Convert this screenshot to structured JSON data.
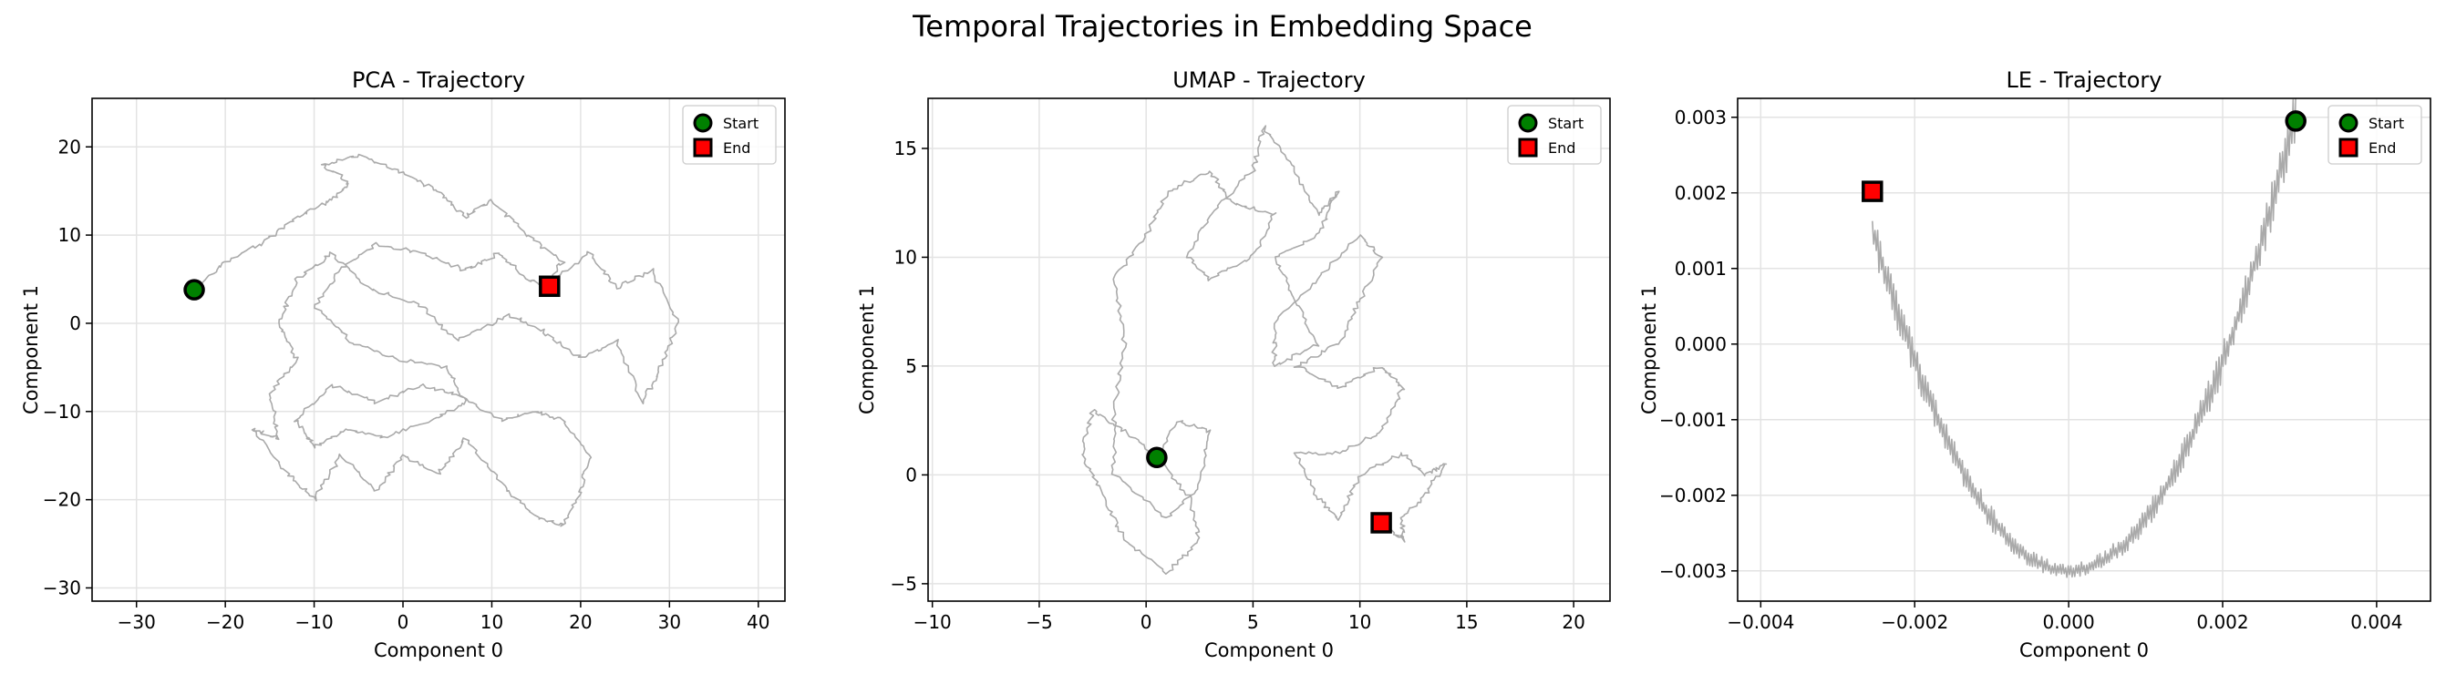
{
  "figure": {
    "suptitle": "Temporal Trajectories in Embedding Space"
  },
  "chart_data": [
    {
      "type": "line",
      "title": "PCA - Trajectory",
      "xlabel": "Component 0",
      "ylabel": "Component 1",
      "xlim": [
        -35,
        43
      ],
      "ylim": [
        -31.5,
        25.5
      ],
      "xticks": [
        -30,
        -20,
        -10,
        0,
        10,
        20,
        30,
        40
      ],
      "yticks": [
        -30,
        -20,
        -10,
        0,
        10,
        20
      ],
      "xtick_labels": [
        "−30",
        "−20",
        "−10",
        "0",
        "10",
        "20",
        "30",
        "40"
      ],
      "ytick_labels": [
        "−30",
        "−20",
        "−10",
        "0",
        "10",
        "20"
      ],
      "grid": true,
      "legend": "top-right",
      "trajectory_color": "#aaaaaa",
      "trajectory_anchors": [
        [
          -23.5,
          3.8
        ],
        [
          -20,
          7
        ],
        [
          -16,
          9
        ],
        [
          -12,
          12
        ],
        [
          -8,
          14
        ],
        [
          -6,
          16
        ],
        [
          -9,
          18
        ],
        [
          -5,
          19
        ],
        [
          0,
          17
        ],
        [
          4,
          15
        ],
        [
          7,
          12
        ],
        [
          10,
          14
        ],
        [
          14,
          10
        ],
        [
          18,
          7
        ],
        [
          16,
          4
        ],
        [
          21,
          8
        ],
        [
          24,
          4
        ],
        [
          28,
          6
        ],
        [
          31,
          0
        ],
        [
          29,
          -5
        ],
        [
          27,
          -9
        ],
        [
          24,
          -2
        ],
        [
          20,
          -4
        ],
        [
          16,
          -1
        ],
        [
          12,
          1
        ],
        [
          6,
          -2
        ],
        [
          2,
          2
        ],
        [
          -4,
          4
        ],
        [
          -8,
          8
        ],
        [
          -12,
          5
        ],
        [
          -14,
          0
        ],
        [
          -12,
          -4
        ],
        [
          -15,
          -8
        ],
        [
          -14,
          -13
        ],
        [
          -17,
          -12
        ],
        [
          -13,
          -17
        ],
        [
          -10,
          -20
        ],
        [
          -7,
          -15
        ],
        [
          -3,
          -19
        ],
        [
          0,
          -15
        ],
        [
          4,
          -17
        ],
        [
          7,
          -13
        ],
        [
          11,
          -18
        ],
        [
          15,
          -22
        ],
        [
          18,
          -23
        ],
        [
          20,
          -19
        ],
        [
          21,
          -15
        ],
        [
          18,
          -11
        ],
        [
          15,
          -10
        ],
        [
          11,
          -11
        ],
        [
          6,
          -8
        ],
        [
          2,
          -7
        ],
        [
          -3,
          -9
        ],
        [
          -8,
          -7
        ],
        [
          -12,
          -11
        ],
        [
          -10,
          -14
        ],
        [
          -6,
          -12
        ],
        [
          -2,
          -13
        ],
        [
          3,
          -11
        ],
        [
          7,
          -9
        ],
        [
          5,
          -5
        ],
        [
          -1,
          -4
        ],
        [
          -6,
          -2
        ],
        [
          -10,
          2
        ],
        [
          -7,
          6
        ],
        [
          -3,
          9
        ],
        [
          2,
          8
        ],
        [
          7,
          6
        ],
        [
          11,
          8
        ],
        [
          14,
          5
        ],
        [
          16.5,
          4.2
        ]
      ],
      "start": {
        "x": -23.5,
        "y": 3.8,
        "label": "Start",
        "color": "#008000"
      },
      "end": {
        "x": 16.5,
        "y": 4.2,
        "label": "End",
        "color": "#ff0000"
      }
    },
    {
      "type": "line",
      "title": "UMAP - Trajectory",
      "xlabel": "Component 0",
      "ylabel": "Component 1",
      "xlim": [
        -10.2,
        21.7
      ],
      "ylim": [
        -5.8,
        17.3
      ],
      "xticks": [
        -10,
        -5,
        0,
        5,
        10,
        15,
        20
      ],
      "yticks": [
        -5,
        0,
        5,
        10,
        15
      ],
      "xtick_labels": [
        "−10",
        "−5",
        "0",
        "5",
        "10",
        "15",
        "20"
      ],
      "ytick_labels": [
        "−5",
        "0",
        "5",
        "10",
        "15"
      ],
      "grid": true,
      "legend": "top-right",
      "trajectory_color": "#aaaaaa",
      "trajectory_anchors": [
        [
          0.5,
          0.8
        ],
        [
          -1,
          2
        ],
        [
          -2.5,
          3
        ],
        [
          -3,
          1
        ],
        [
          -2,
          -1
        ],
        [
          -1,
          -3
        ],
        [
          1,
          -4.5
        ],
        [
          2.5,
          -3
        ],
        [
          2,
          -1
        ],
        [
          0.5,
          0.8
        ],
        [
          1.5,
          2.5
        ],
        [
          3,
          2
        ],
        [
          2.5,
          -0.5
        ],
        [
          1,
          -2
        ],
        [
          -1.5,
          0
        ],
        [
          -1.5,
          3
        ],
        [
          -1,
          6
        ],
        [
          -1.5,
          9
        ],
        [
          0,
          11
        ],
        [
          1,
          13
        ],
        [
          3,
          14
        ],
        [
          4,
          12.5
        ],
        [
          6,
          12
        ],
        [
          5,
          10
        ],
        [
          3,
          9
        ],
        [
          2,
          10
        ],
        [
          3,
          12
        ],
        [
          5,
          14
        ],
        [
          5.5,
          16
        ],
        [
          7,
          14
        ],
        [
          8,
          12
        ],
        [
          9,
          13
        ],
        [
          8,
          11
        ],
        [
          6,
          10
        ],
        [
          7,
          8
        ],
        [
          8,
          6
        ],
        [
          6,
          5
        ],
        [
          6,
          7
        ],
        [
          8,
          9
        ],
        [
          10,
          11
        ],
        [
          11,
          10
        ],
        [
          10,
          8
        ],
        [
          9,
          6
        ],
        [
          7,
          5
        ],
        [
          9,
          4
        ],
        [
          11,
          5
        ],
        [
          12,
          4
        ],
        [
          11,
          2
        ],
        [
          9,
          1
        ],
        [
          7,
          1
        ],
        [
          8,
          -1
        ],
        [
          9,
          -2
        ],
        [
          10,
          0
        ],
        [
          12,
          1
        ],
        [
          13,
          0
        ],
        [
          14,
          0.5
        ],
        [
          13,
          -1
        ],
        [
          12,
          -2
        ],
        [
          12,
          -3
        ],
        [
          11,
          -2.2
        ]
      ],
      "start": {
        "x": 0.5,
        "y": 0.8,
        "label": "Start",
        "color": "#008000"
      },
      "end": {
        "x": 11.0,
        "y": -2.2,
        "label": "End",
        "color": "#ff0000"
      }
    },
    {
      "type": "line",
      "title": "LE - Trajectory",
      "xlabel": "Component 0",
      "ylabel": "Component 1",
      "xlim": [
        -0.0043,
        0.0047
      ],
      "ylim": [
        -0.0034,
        0.00325
      ],
      "xticks": [
        -0.004,
        -0.002,
        0.0,
        0.002,
        0.004
      ],
      "yticks": [
        -0.003,
        -0.002,
        -0.001,
        0.0,
        0.001,
        0.002,
        0.003
      ],
      "xtick_labels": [
        "−0.004",
        "−0.002",
        "0.000",
        "0.002",
        "0.004"
      ],
      "ytick_labels": [
        "−0.003",
        "−0.002",
        "−0.001",
        "0.000",
        "0.001",
        "0.002",
        "0.003"
      ],
      "grid": true,
      "legend": "top-right",
      "trajectory_color": "#aaaaaa",
      "start": {
        "x": 0.00295,
        "y": 0.00295,
        "label": "Start",
        "color": "#008000"
      },
      "end": {
        "x": -0.00255,
        "y": 0.00202,
        "label": "End",
        "color": "#ff0000"
      }
    }
  ]
}
